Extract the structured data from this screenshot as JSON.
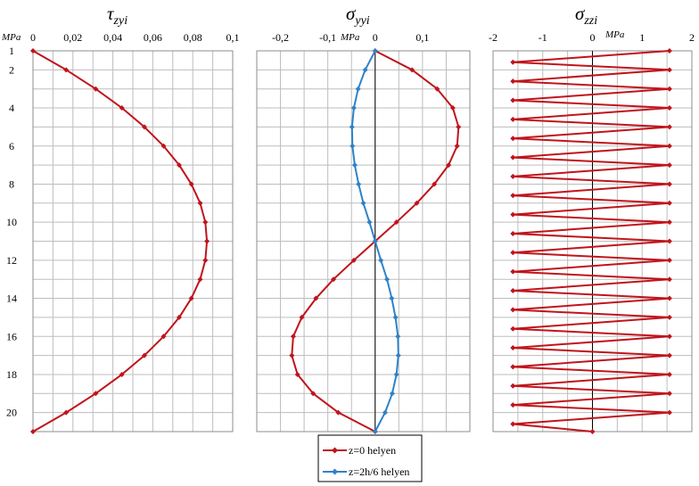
{
  "colors": {
    "red": "#c0141c",
    "blue": "#2e82c8",
    "grid": "#bdbdbd"
  },
  "y_axis": {
    "unit": "MPa",
    "ticks": [
      "1",
      "2",
      "4",
      "6",
      "8",
      "10",
      "12",
      "14",
      "16",
      "18",
      "20"
    ],
    "ylim": [
      1,
      21
    ],
    "inverted": true
  },
  "legend": {
    "placement": "bottom-center",
    "items": [
      {
        "label": "z=0 helyen",
        "color": "#c0141c"
      },
      {
        "label": "z=2h/6 helyen",
        "color": "#2e82c8"
      }
    ]
  },
  "chart_data": [
    {
      "type": "line",
      "title_base": "τ",
      "title_sub": "zyi",
      "xunit": "MPa",
      "xlim": [
        0,
        0.1
      ],
      "xticks": [
        "0",
        "0,02",
        "0,04",
        "0,06",
        "0,08",
        "0,1"
      ],
      "ylim": [
        1,
        21
      ],
      "grid": true,
      "series": [
        {
          "name": "z=0 helyen",
          "color": "#c0141c",
          "points": [
            [
              0,
              1
            ],
            [
              0.0166,
              2
            ],
            [
              0.0314,
              3
            ],
            [
              0.0445,
              4
            ],
            [
              0.0558,
              5
            ],
            [
              0.0654,
              6
            ],
            [
              0.0732,
              7
            ],
            [
              0.0793,
              8
            ],
            [
              0.0837,
              9
            ],
            [
              0.0863,
              10
            ],
            [
              0.0871,
              11
            ],
            [
              0.0863,
              12
            ],
            [
              0.0837,
              13
            ],
            [
              0.0793,
              14
            ],
            [
              0.0732,
              15
            ],
            [
              0.0654,
              16
            ],
            [
              0.0558,
              17
            ],
            [
              0.0445,
              18
            ],
            [
              0.0314,
              19
            ],
            [
              0.0166,
              20
            ],
            [
              0,
              21
            ]
          ]
        }
      ]
    },
    {
      "type": "line",
      "title_base": "σ",
      "title_sub": "yyi",
      "xunit": "MPa",
      "xlim": [
        -0.25,
        0.2
      ],
      "xticks": [
        "-0,2",
        "-0,1",
        "0",
        "0,1"
      ],
      "ylim": [
        1,
        21
      ],
      "grid": true,
      "series": [
        {
          "name": "z=0 helyen",
          "color": "#c0141c",
          "points": [
            [
              0,
              1
            ],
            [
              0.078,
              2
            ],
            [
              0.131,
              3
            ],
            [
              0.164,
              4
            ],
            [
              0.176,
              5
            ],
            [
              0.173,
              6
            ],
            [
              0.155,
              7
            ],
            [
              0.125,
              8
            ],
            [
              0.088,
              9
            ],
            [
              0.045,
              10
            ],
            [
              0,
              11
            ],
            [
              -0.045,
              12
            ],
            [
              -0.088,
              13
            ],
            [
              -0.125,
              14
            ],
            [
              -0.155,
              15
            ],
            [
              -0.173,
              16
            ],
            [
              -0.176,
              17
            ],
            [
              -0.164,
              18
            ],
            [
              -0.131,
              19
            ],
            [
              -0.078,
              20
            ],
            [
              0,
              21
            ]
          ]
        },
        {
          "name": "z=2h/6 helyen",
          "color": "#2e82c8",
          "points": [
            [
              0,
              1
            ],
            [
              -0.021,
              2
            ],
            [
              -0.036,
              3
            ],
            [
              -0.045,
              4
            ],
            [
              -0.049,
              5
            ],
            [
              -0.048,
              6
            ],
            [
              -0.043,
              7
            ],
            [
              -0.035,
              8
            ],
            [
              -0.025,
              9
            ],
            [
              -0.012,
              10
            ],
            [
              0,
              11
            ],
            [
              0.012,
              12
            ],
            [
              0.025,
              13
            ],
            [
              0.035,
              14
            ],
            [
              0.043,
              15
            ],
            [
              0.048,
              16
            ],
            [
              0.049,
              17
            ],
            [
              0.045,
              18
            ],
            [
              0.036,
              19
            ],
            [
              0.021,
              20
            ],
            [
              0,
              21
            ]
          ]
        }
      ]
    },
    {
      "type": "line",
      "title_base": "σ",
      "title_sub": "zzi",
      "xunit": "MPa",
      "xlim": [
        -2,
        2
      ],
      "xticks": [
        "-2",
        "-1",
        "0",
        "1",
        "2"
      ],
      "ylim": [
        1,
        21
      ],
      "grid": true,
      "series": [
        {
          "name": "z=0 helyen",
          "color": "#c0141c",
          "points": [
            [
              1.55,
              1
            ],
            [
              -1.6,
              1.6
            ],
            [
              1.55,
              2
            ],
            [
              -1.6,
              2.6
            ],
            [
              1.55,
              3
            ],
            [
              -1.6,
              3.6
            ],
            [
              1.55,
              4
            ],
            [
              -1.6,
              4.6
            ],
            [
              1.55,
              5
            ],
            [
              -1.6,
              5.6
            ],
            [
              1.55,
              6
            ],
            [
              -1.6,
              6.6
            ],
            [
              1.55,
              7
            ],
            [
              -1.6,
              7.6
            ],
            [
              1.55,
              8
            ],
            [
              -1.6,
              8.6
            ],
            [
              1.55,
              9
            ],
            [
              -1.6,
              9.6
            ],
            [
              1.55,
              10
            ],
            [
              -1.6,
              10.6
            ],
            [
              1.55,
              11
            ],
            [
              -1.6,
              11.6
            ],
            [
              1.55,
              12
            ],
            [
              -1.6,
              12.6
            ],
            [
              1.55,
              13
            ],
            [
              -1.6,
              13.6
            ],
            [
              1.55,
              14
            ],
            [
              -1.6,
              14.6
            ],
            [
              1.55,
              15
            ],
            [
              -1.6,
              15.6
            ],
            [
              1.55,
              16
            ],
            [
              -1.6,
              16.6
            ],
            [
              1.55,
              17
            ],
            [
              -1.6,
              17.6
            ],
            [
              1.55,
              18
            ],
            [
              -1.6,
              18.6
            ],
            [
              1.55,
              19
            ],
            [
              -1.6,
              19.6
            ],
            [
              1.55,
              20
            ],
            [
              -1.6,
              20.6
            ],
            [
              0,
              21
            ]
          ]
        }
      ]
    }
  ]
}
